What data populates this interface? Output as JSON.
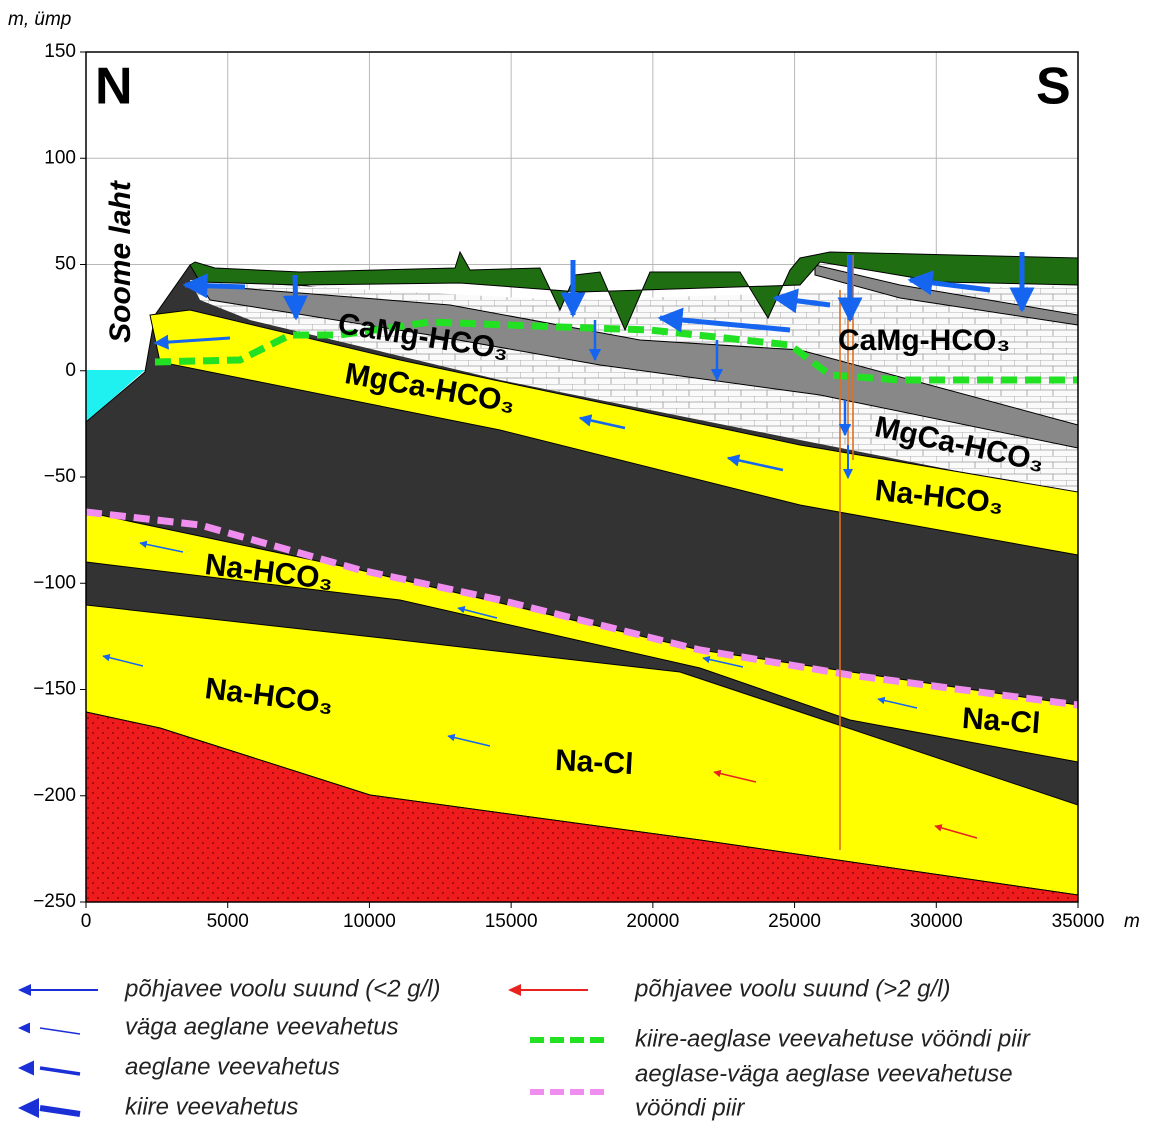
{
  "chart_data": {
    "type": "cross-section",
    "y_label": "m, ümp",
    "x_label": "m",
    "xlim": [
      0,
      35000
    ],
    "ylim": [
      -250,
      150
    ],
    "xticks": [
      0,
      5000,
      10000,
      15000,
      20000,
      25000,
      30000,
      35000
    ],
    "yticks": [
      {
        "value": -250,
        "label": "−250"
      },
      {
        "value": -200,
        "label": "−200"
      },
      {
        "value": -150,
        "label": "−150"
      },
      {
        "value": -100,
        "label": "−100"
      },
      {
        "value": -50,
        "label": "−50"
      },
      0,
      50,
      100,
      150
    ],
    "grid": true,
    "annotations": [
      "N",
      "S",
      "Soome laht",
      "CaMg-HCO₃",
      "CaMg-HCO₃",
      "MgCa-HCO₃",
      "MgCa-HCO₃",
      "Na-HCO₃",
      "Na-HCO₃",
      "Na-HCO₃",
      "Na-Cl",
      "Na-Cl"
    ],
    "legend": [
      {
        "label": "põhjavee voolu suund (<2 g/l)",
        "color": "#1a2fd6"
      },
      {
        "label": "väga aeglane veevahetus",
        "color": "#1a2fd6"
      },
      {
        "label": "aeglane veevahetus",
        "color": "#1a2fd6"
      },
      {
        "label": "kiire veevahetus",
        "color": "#1a2fd6"
      },
      {
        "label": "põhjavee voolu suund (>2 g/l)",
        "color": "#e8231f"
      },
      {
        "label": "kiire-aeglase veevahetuse vööndi piir",
        "color": "#22e022"
      },
      {
        "label": [
          "aeglase-väga aeglase veevahetuse",
          "vööndi piir"
        ],
        "color": "#f08ef0"
      }
    ]
  }
}
